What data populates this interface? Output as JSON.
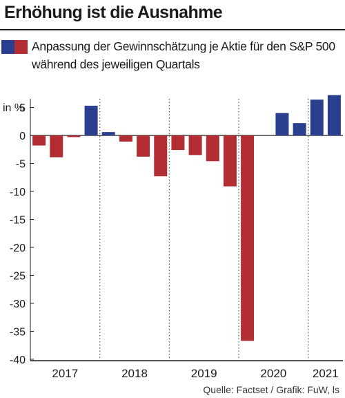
{
  "header": {
    "title": "Erhöhung ist die Ausnahme",
    "legend_text": "Anpassung der Gewinnschätzung je Aktie für den S&P 500 während des jeweiligen Quartals"
  },
  "unit_label": "in %",
  "source": "Quelle: Factset / Grafik: FuW, ls",
  "colors": {
    "positive": "#2b3f8f",
    "negative": "#b22e33"
  },
  "chart_data": {
    "type": "bar",
    "title": "Erhöhung ist die Ausnahme",
    "ylabel": "in %",
    "ylim": [
      -40,
      7.5
    ],
    "yticks": [
      5,
      0,
      -5,
      -10,
      -15,
      -20,
      -25,
      -30,
      -35,
      -40
    ],
    "years": [
      "2017",
      "2018",
      "2019",
      "2020",
      "2021"
    ],
    "quarters": [
      "Q1 2017",
      "Q2 2017",
      "Q3 2017",
      "Q4 2017",
      "Q1 2018",
      "Q2 2018",
      "Q3 2018",
      "Q4 2018",
      "Q1 2019",
      "Q2 2019",
      "Q3 2019",
      "Q4 2019",
      "Q1 2020",
      "Q2 2020",
      "Q3 2020",
      "Q4 2020",
      "Q1 2021",
      "Q2 2021"
    ],
    "values": [
      -1.8,
      -3.9,
      -0.3,
      5.3,
      0.6,
      -1.1,
      -3.8,
      -7.3,
      -2.6,
      -3.5,
      -4.6,
      -9.1,
      -36.7,
      0,
      4.0,
      2.2,
      6.4,
      7.2
    ],
    "grid": "vertical dotted lines between years",
    "legend": "top"
  }
}
